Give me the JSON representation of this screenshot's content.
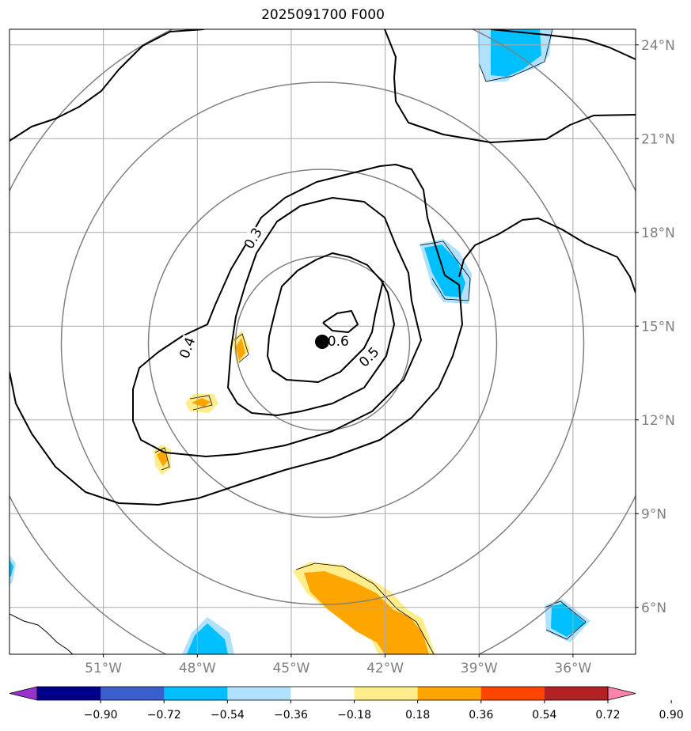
{
  "chart_data": {
    "type": "map-contour",
    "title": "2025091700 F000",
    "lon_range": [
      -54,
      -34
    ],
    "lat_range": [
      4.5,
      24.5
    ],
    "lon_ticks": [
      {
        "value": -51,
        "label": "51°W"
      },
      {
        "value": -48,
        "label": "48°W"
      },
      {
        "value": -45,
        "label": "45°W"
      },
      {
        "value": -42,
        "label": "42°W"
      },
      {
        "value": -39,
        "label": "39°W"
      },
      {
        "value": -36,
        "label": "36°W"
      }
    ],
    "lat_ticks": [
      {
        "value": 24,
        "label": "24°N"
      },
      {
        "value": 21,
        "label": "21°N"
      },
      {
        "value": 18,
        "label": "18°N"
      },
      {
        "value": 15,
        "label": "15°N"
      },
      {
        "value": 12,
        "label": "12°N"
      },
      {
        "value": 9,
        "label": "9°N"
      },
      {
        "value": 6,
        "label": "6°N"
      }
    ],
    "grid": true,
    "center": {
      "lon": -44.0,
      "lat": 14.5
    },
    "range_rings_count": 4,
    "contour_labels": [
      {
        "text": "0.3",
        "lon": -46.2,
        "lat": 17.8,
        "rotate": -60
      },
      {
        "text": "0.4",
        "lon": -48.3,
        "lat": 14.3,
        "rotate": -70
      },
      {
        "text": "0.5",
        "lon": -42.5,
        "lat": 14.0,
        "rotate": -45
      },
      {
        "text": "0.6",
        "lon": -43.5,
        "lat": 14.5,
        "rotate": 0
      }
    ],
    "colorbar": {
      "levels": [
        "−0.90",
        "−0.72",
        "−0.54",
        "−0.36",
        "−0.18",
        "0.18",
        "0.36",
        "0.54",
        "0.72",
        "0.90"
      ],
      "colors": [
        "#9932cc",
        "#00008b",
        "#3a5fcd",
        "#00bfff",
        "#b0e2ff",
        "#ffffff",
        "#ffec8b",
        "#ffa500",
        "#ff4500",
        "#b22222",
        "#ff82ab"
      ],
      "extend": "both"
    }
  }
}
